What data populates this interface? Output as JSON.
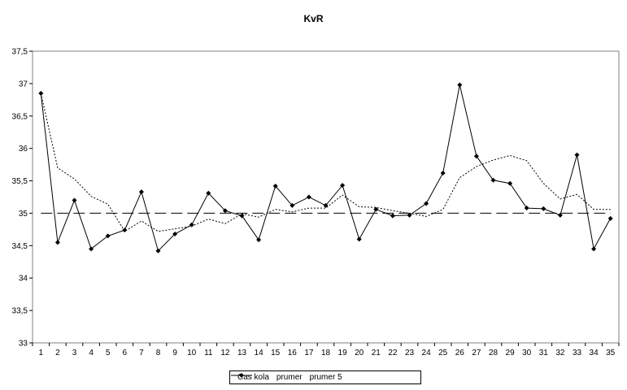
{
  "chart_data": {
    "type": "line",
    "title": "KvR",
    "xlabel": "",
    "ylabel": "",
    "categories": [
      "1",
      "2",
      "3",
      "4",
      "5",
      "6",
      "7",
      "8",
      "9",
      "10",
      "11",
      "12",
      "13",
      "14",
      "15",
      "16",
      "17",
      "18",
      "19",
      "20",
      "21",
      "22",
      "23",
      "24",
      "25",
      "26",
      "27",
      "28",
      "29",
      "30",
      "31",
      "32",
      "33",
      "34",
      "35"
    ],
    "ylim": [
      33,
      37.5
    ],
    "yticks": [
      "33",
      "33,5",
      "34",
      "34,5",
      "35",
      "35,5",
      "36",
      "36,5",
      "37",
      "37,5"
    ],
    "grid": false,
    "legend_position": "bottom",
    "series": [
      {
        "name": "Cas kola",
        "style": "solid-diamond",
        "color": "#000000",
        "values": [
          36.85,
          34.55,
          35.2,
          34.45,
          34.65,
          34.74,
          35.33,
          34.42,
          34.68,
          34.82,
          35.31,
          35.04,
          34.96,
          34.59,
          35.42,
          35.12,
          35.25,
          35.12,
          35.43,
          34.6,
          35.06,
          34.96,
          34.97,
          35.15,
          35.62,
          36.98,
          35.88,
          35.51,
          35.46,
          35.08,
          35.07,
          34.97,
          35.9,
          34.45,
          34.92
        ]
      },
      {
        "name": "prumer",
        "style": "long-dash",
        "color": "#000000",
        "values": [
          35.0,
          35.0,
          35.0,
          35.0,
          35.0,
          35.0,
          35.0,
          35.0,
          35.0,
          35.0,
          35.0,
          35.0,
          35.0,
          35.0,
          35.0,
          35.0,
          35.0,
          35.0,
          35.0,
          35.0,
          35.0,
          35.0,
          35.0,
          35.0,
          35.0,
          35.0,
          35.0,
          35.0,
          35.0,
          35.0,
          35.0,
          35.0,
          35.0,
          35.0,
          35.0
        ]
      },
      {
        "name": "prumer 5",
        "style": "dotted",
        "color": "#000000",
        "values": [
          36.85,
          35.7,
          35.53,
          35.26,
          35.14,
          34.72,
          34.88,
          34.72,
          34.76,
          34.8,
          34.91,
          34.84,
          34.99,
          34.94,
          35.06,
          35.02,
          35.08,
          35.08,
          35.28,
          35.1,
          35.09,
          35.04,
          35.0,
          34.95,
          35.06,
          35.55,
          35.72,
          35.82,
          35.89,
          35.81,
          35.46,
          35.22,
          35.29,
          35.06,
          35.06
        ]
      }
    ]
  }
}
